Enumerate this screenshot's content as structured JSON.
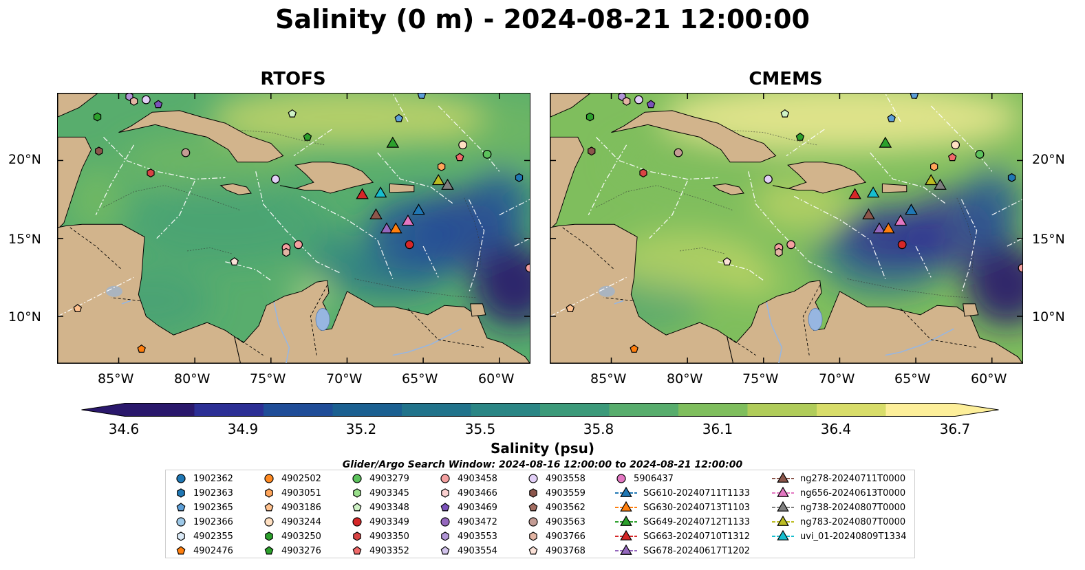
{
  "title": "Salinity (0 m) - 2024-08-21 12:00:00",
  "panels": [
    {
      "id": "rtofs",
      "title": "RTOFS"
    },
    {
      "id": "cmems",
      "title": "CMEMS"
    }
  ],
  "axes": {
    "lon_ticks": [
      "85°W",
      "80°W",
      "75°W",
      "70°W",
      "65°W",
      "60°W"
    ],
    "lat_ticks": [
      "20°N",
      "15°N",
      "10°N"
    ],
    "lon_range": [
      -89,
      -58
    ],
    "lat_range": [
      7,
      24.3
    ]
  },
  "colorbar": {
    "min": 34.6,
    "max": 36.7,
    "extend": "both",
    "ticks": [
      "34.6",
      "34.9",
      "35.2",
      "35.5",
      "35.8",
      "36.1",
      "36.4",
      "36.7"
    ],
    "label": "Salinity (psu)",
    "colormap": "haline",
    "colors": [
      "#2a186c",
      "#2c2f95",
      "#1f4d98",
      "#1b6091",
      "#21738b",
      "#2b8685",
      "#3c9a7a",
      "#58ad6d",
      "#7fbe5d",
      "#b0cc5a",
      "#d8dd6a",
      "#fdef9a"
    ]
  },
  "search_window": "Glider/Argo Search Window: 2024-08-16 12:00:00 to 2024-08-21 12:00:00",
  "colors": {
    "land": "#d2b48c",
    "lake": "#97b6e1",
    "eez_line": "#ffffff"
  },
  "legend": [
    {
      "label": "1902362",
      "marker": "circle",
      "color": "#1f77b4"
    },
    {
      "label": "1902363",
      "marker": "hexagon",
      "color": "#1f77b4"
    },
    {
      "label": "1902365",
      "marker": "pentagon",
      "color": "#5d9fd8"
    },
    {
      "label": "1902366",
      "marker": "circle",
      "color": "#9ec9e8"
    },
    {
      "label": "4902355",
      "marker": "hexagon",
      "color": "#dbeaf7"
    },
    {
      "label": "4902476",
      "marker": "pentagon",
      "color": "#ff7f0e"
    },
    {
      "label": "4902502",
      "marker": "circle",
      "color": "#ff8a22"
    },
    {
      "label": "4903051",
      "marker": "hexagon",
      "color": "#ffa55a"
    },
    {
      "label": "4903186",
      "marker": "pentagon",
      "color": "#ffc18e"
    },
    {
      "label": "4903244",
      "marker": "circle",
      "color": "#ffe0c2"
    },
    {
      "label": "4903250",
      "marker": "hexagon",
      "color": "#2ca02c"
    },
    {
      "label": "4903276",
      "marker": "pentagon",
      "color": "#2ca02c"
    },
    {
      "label": "4903279",
      "marker": "circle",
      "color": "#5cc25c"
    },
    {
      "label": "4903345",
      "marker": "hexagon",
      "color": "#98df8a"
    },
    {
      "label": "4903348",
      "marker": "pentagon",
      "color": "#cff2c6"
    },
    {
      "label": "4903349",
      "marker": "circle",
      "color": "#d62728"
    },
    {
      "label": "4903350",
      "marker": "hexagon",
      "color": "#d94444"
    },
    {
      "label": "4903352",
      "marker": "pentagon",
      "color": "#f06a6a"
    },
    {
      "label": "4903458",
      "marker": "circle",
      "color": "#f4a0a0"
    },
    {
      "label": "4903466",
      "marker": "hexagon",
      "color": "#fbd0d0"
    },
    {
      "label": "4903469",
      "marker": "pentagon",
      "color": "#7b52ba"
    },
    {
      "label": "4903472",
      "marker": "circle",
      "color": "#9467bd"
    },
    {
      "label": "4903553",
      "marker": "hexagon",
      "color": "#b195d6"
    },
    {
      "label": "4903554",
      "marker": "pentagon",
      "color": "#d2c3ec"
    },
    {
      "label": "4903558",
      "marker": "circle",
      "color": "#e2cff7"
    },
    {
      "label": "4903559",
      "marker": "hexagon",
      "color": "#8c564b"
    },
    {
      "label": "4903562",
      "marker": "pentagon",
      "color": "#a46e62"
    },
    {
      "label": "4903563",
      "marker": "circle",
      "color": "#c49c94"
    },
    {
      "label": "4903766",
      "marker": "hexagon",
      "color": "#e3b5a4"
    },
    {
      "label": "4903768",
      "marker": "pentagon",
      "color": "#fbe1d7"
    },
    {
      "label": "5906437",
      "marker": "circle",
      "color": "#e377c2"
    },
    {
      "label": "SG610-20240711T1133",
      "marker": "triangle",
      "color": "#1f77b4"
    },
    {
      "label": "SG630-20240713T1103",
      "marker": "triangle",
      "color": "#ff7f0e"
    },
    {
      "label": "SG649-20240712T1133",
      "marker": "triangle",
      "color": "#2ca02c"
    },
    {
      "label": "SG663-20240710T1312",
      "marker": "triangle",
      "color": "#d62728"
    },
    {
      "label": "SG678-20240617T1202",
      "marker": "triangle",
      "color": "#9467bd"
    },
    {
      "label": "ng278-20240711T0000",
      "marker": "triangle",
      "color": "#8c564b"
    },
    {
      "label": "ng656-20240613T0000",
      "marker": "triangle",
      "color": "#e377c2"
    },
    {
      "label": "ng738-20240807T0000",
      "marker": "triangle",
      "color": "#7f7f7f"
    },
    {
      "label": "ng783-20240807T0000",
      "marker": "triangle",
      "color": "#bcbd22"
    },
    {
      "label": "uvi_01-20240809T1334",
      "marker": "triangle",
      "color": "#17becf"
    }
  ],
  "platforms": [
    {
      "id": "1902365",
      "lon": -65.1,
      "lat": 24.2
    },
    {
      "id": "4903553",
      "lon": -84.3,
      "lat": 24.1
    },
    {
      "id": "4903766",
      "lon": -84.0,
      "lat": 23.8
    },
    {
      "id": "4903558",
      "lon": -83.2,
      "lat": 23.9
    },
    {
      "id": "4903469",
      "lon": -82.4,
      "lat": 23.6
    },
    {
      "id": "4903250",
      "lon": -86.4,
      "lat": 22.8
    },
    {
      "id": "4903348",
      "lon": -73.6,
      "lat": 23.0
    },
    {
      "id": "1902365",
      "lon": -66.6,
      "lat": 22.7
    },
    {
      "id": "4903276",
      "lon": -72.6,
      "lat": 21.5
    },
    {
      "id": "4903244",
      "lon": -62.4,
      "lat": 21.0
    },
    {
      "id": "4903559",
      "lon": -86.3,
      "lat": 20.6
    },
    {
      "id": "4903563",
      "lon": -80.6,
      "lat": 20.5
    },
    {
      "id": "4903279",
      "lon": -60.8,
      "lat": 20.4
    },
    {
      "id": "4903352",
      "lon": -62.6,
      "lat": 20.2
    },
    {
      "id": "4903350",
      "lon": -82.9,
      "lat": 19.2
    },
    {
      "id": "4903051",
      "lon": -63.8,
      "lat": 19.6
    },
    {
      "id": "4903558",
      "lon": -74.7,
      "lat": 18.8
    },
    {
      "id": "1902363",
      "lon": -58.7,
      "lat": 18.9
    },
    {
      "id": "4903458",
      "lon": -73.2,
      "lat": 14.6
    },
    {
      "id": "4903458",
      "lon": -74.0,
      "lat": 14.4
    },
    {
      "id": "4903766",
      "lon": -74.0,
      "lat": 14.1
    },
    {
      "id": "4903349",
      "lon": -65.9,
      "lat": 14.6
    },
    {
      "id": "4903768",
      "lon": -77.4,
      "lat": 13.5
    },
    {
      "id": "4903458",
      "lon": -58.0,
      "lat": 13.1
    },
    {
      "id": "4903186",
      "lon": -87.7,
      "lat": 10.5
    },
    {
      "id": "4902476",
      "lon": -83.5,
      "lat": 7.9
    },
    {
      "id": "SG649-20240712T1133",
      "lon": -67.0,
      "lat": 21.1
    },
    {
      "id": "SG663-20240710T1312",
      "lon": -69.0,
      "lat": 17.8
    },
    {
      "id": "uvi_01-20240809T1334",
      "lon": -67.8,
      "lat": 17.9
    },
    {
      "id": "ng783-20240807T0000",
      "lon": -64.0,
      "lat": 18.7
    },
    {
      "id": "ng738-20240807T0000",
      "lon": -63.4,
      "lat": 18.4
    },
    {
      "id": "SG610-20240711T1133",
      "lon": -65.3,
      "lat": 16.8
    },
    {
      "id": "ng656-20240613T0000",
      "lon": -66.0,
      "lat": 16.1
    },
    {
      "id": "ng278-20240711T0000",
      "lon": -68.1,
      "lat": 16.5
    },
    {
      "id": "SG678-20240617T1202",
      "lon": -67.4,
      "lat": 15.6
    },
    {
      "id": "SG630-20240713T1103",
      "lon": -66.8,
      "lat": 15.6
    }
  ]
}
